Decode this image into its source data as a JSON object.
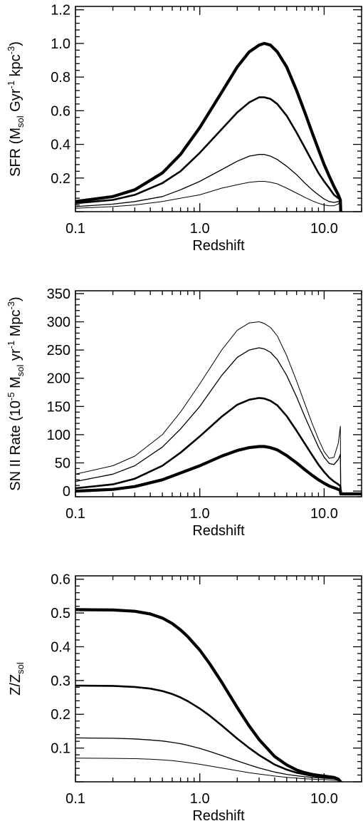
{
  "chart_data": [
    {
      "type": "line",
      "xscale": "log",
      "xlim": [
        0.1,
        20
      ],
      "ylim": [
        0,
        1.22
      ],
      "xticks": [
        {
          "v": 0.1,
          "label": "0.1"
        },
        {
          "v": 1.0,
          "label": "1.0"
        },
        {
          "v": 10.0,
          "label": "10.0"
        }
      ],
      "yticks": [
        {
          "v": 0.2,
          "label": "0.2"
        },
        {
          "v": 0.4,
          "label": "0.4"
        },
        {
          "v": 0.6,
          "label": "0.6"
        },
        {
          "v": 0.8,
          "label": "0.8"
        },
        {
          "v": 1.0,
          "label": "1.0"
        },
        {
          "v": 1.2,
          "label": "1.2"
        }
      ],
      "xlabel": "Redshift",
      "ylabel": {
        "pre": "SFR (M",
        "sub": "sol",
        "mid1": " Gyr",
        "sup1": "-1",
        "mid2": " kpc",
        "sup2": "-3",
        "post": ")"
      },
      "series": [
        {
          "stroke": 4.2,
          "x": [
            0.1,
            0.2,
            0.3,
            0.5,
            0.7,
            1.0,
            1.5,
            2.0,
            2.5,
            3.0,
            3.3,
            3.7,
            4.2,
            5.0,
            6.0,
            7.0,
            8.0,
            9.0,
            10.0,
            11.0,
            12.0,
            13.0,
            13.5,
            13.6
          ],
          "y": [
            0.06,
            0.09,
            0.13,
            0.23,
            0.34,
            0.5,
            0.71,
            0.86,
            0.95,
            0.99,
            1.0,
            0.99,
            0.95,
            0.86,
            0.72,
            0.59,
            0.47,
            0.37,
            0.28,
            0.21,
            0.15,
            0.1,
            0.07,
            0.0
          ]
        },
        {
          "stroke": 2.6,
          "x": [
            0.1,
            0.2,
            0.3,
            0.5,
            0.7,
            1.0,
            1.5,
            2.0,
            2.5,
            3.0,
            3.3,
            3.7,
            4.2,
            5.0,
            6.0,
            7.0,
            8.0,
            9.0,
            10.0,
            11.0,
            12.0,
            13.0,
            13.5,
            13.6
          ],
          "y": [
            0.05,
            0.07,
            0.1,
            0.17,
            0.24,
            0.35,
            0.49,
            0.59,
            0.65,
            0.68,
            0.68,
            0.67,
            0.64,
            0.57,
            0.47,
            0.38,
            0.3,
            0.23,
            0.18,
            0.14,
            0.1,
            0.08,
            0.07,
            0.0
          ]
        },
        {
          "stroke": 1.3,
          "x": [
            0.1,
            0.2,
            0.3,
            0.5,
            0.7,
            1.0,
            1.5,
            2.0,
            2.5,
            3.0,
            3.3,
            3.7,
            4.2,
            5.0,
            6.0,
            7.0,
            8.0,
            9.0,
            10.0,
            11.0,
            12.0,
            13.0,
            13.5,
            13.6
          ],
          "y": [
            0.03,
            0.045,
            0.06,
            0.09,
            0.13,
            0.18,
            0.25,
            0.3,
            0.33,
            0.34,
            0.34,
            0.33,
            0.31,
            0.27,
            0.22,
            0.17,
            0.13,
            0.1,
            0.075,
            0.06,
            0.055,
            0.06,
            0.07,
            0.0
          ]
        },
        {
          "stroke": 1.0,
          "x": [
            0.1,
            0.2,
            0.3,
            0.5,
            0.7,
            1.0,
            1.5,
            2.0,
            2.5,
            3.0,
            3.3,
            3.7,
            4.2,
            5.0,
            6.0,
            7.0,
            8.0,
            9.0,
            10.0,
            11.0,
            12.0,
            13.0,
            13.5,
            13.6
          ],
          "y": [
            0.02,
            0.03,
            0.04,
            0.06,
            0.08,
            0.1,
            0.14,
            0.16,
            0.175,
            0.18,
            0.18,
            0.175,
            0.165,
            0.14,
            0.11,
            0.085,
            0.065,
            0.05,
            0.04,
            0.035,
            0.035,
            0.045,
            0.07,
            0.0
          ]
        }
      ]
    },
    {
      "type": "line",
      "xscale": "log",
      "xlim": [
        0.1,
        20
      ],
      "ylim": [
        -10,
        355
      ],
      "xticks": [
        {
          "v": 0.1,
          "label": "0.1"
        },
        {
          "v": 1.0,
          "label": "1.0"
        },
        {
          "v": 10.0,
          "label": "10.0"
        }
      ],
      "yticks": [
        {
          "v": 0,
          "label": "0"
        },
        {
          "v": 50,
          "label": "50"
        },
        {
          "v": 100,
          "label": "100"
        },
        {
          "v": 150,
          "label": "150"
        },
        {
          "v": 200,
          "label": "200"
        },
        {
          "v": 250,
          "label": "250"
        },
        {
          "v": 300,
          "label": "300"
        },
        {
          "v": 350,
          "label": "350"
        }
      ],
      "xlabel": "Redshift",
      "ylabel": {
        "pre": "SN II Rate (10",
        "sup0": "-5",
        "mid0": " M",
        "sub": "sol",
        "mid1": " yr",
        "sup1": "-1",
        "mid2": " Mpc",
        "sup2": "-3",
        "post": ")"
      },
      "series": [
        {
          "stroke": 1.0,
          "x": [
            0.1,
            0.2,
            0.3,
            0.5,
            0.7,
            1.0,
            1.5,
            2.0,
            2.5,
            3.0,
            3.3,
            3.7,
            4.2,
            5.0,
            6.0,
            7.0,
            8.0,
            9.0,
            10.0,
            11.0,
            12.0,
            13.0,
            13.5,
            13.6
          ],
          "y": [
            30,
            45,
            62,
            100,
            140,
            190,
            250,
            285,
            298,
            300,
            297,
            290,
            275,
            240,
            195,
            155,
            120,
            92,
            70,
            58,
            60,
            85,
            115,
            0
          ]
        },
        {
          "stroke": 1.3,
          "x": [
            0.1,
            0.2,
            0.3,
            0.5,
            0.7,
            1.0,
            1.5,
            2.0,
            2.5,
            3.0,
            3.3,
            3.7,
            4.2,
            5.0,
            6.0,
            7.0,
            8.0,
            9.0,
            10.0,
            11.0,
            12.0,
            13.0,
            13.5,
            13.6
          ],
          "y": [
            17,
            30,
            45,
            78,
            110,
            150,
            205,
            237,
            250,
            254,
            252,
            246,
            233,
            205,
            167,
            132,
            103,
            78,
            60,
            49,
            47,
            56,
            65,
            0
          ]
        },
        {
          "stroke": 2.6,
          "x": [
            0.1,
            0.2,
            0.3,
            0.5,
            0.7,
            1.0,
            1.5,
            2.0,
            2.5,
            3.0,
            3.3,
            3.7,
            4.2,
            5.0,
            6.0,
            7.0,
            8.0,
            9.0,
            10.0,
            11.0,
            12.0,
            13.0,
            13.5,
            13.6
          ],
          "y": [
            5,
            12,
            22,
            45,
            68,
            97,
            132,
            153,
            162,
            165,
            164,
            160,
            152,
            133,
            107,
            84,
            64,
            47,
            34,
            24,
            17,
            12,
            9,
            0
          ]
        },
        {
          "stroke": 4.2,
          "x": [
            0.1,
            0.2,
            0.3,
            0.5,
            0.7,
            1.0,
            1.5,
            2.0,
            2.5,
            3.0,
            3.3,
            3.7,
            4.2,
            5.0,
            6.0,
            7.0,
            8.0,
            9.0,
            10.0,
            11.0,
            12.0,
            13.0,
            13.5,
            13.6,
            20.0
          ],
          "y": [
            0,
            3,
            8,
            20,
            32,
            45,
            62,
            72,
            77,
            79,
            79,
            77,
            73,
            63,
            50,
            38,
            28,
            20,
            14,
            9,
            6,
            3,
            1,
            -5,
            -5
          ]
        }
      ]
    },
    {
      "type": "line",
      "xscale": "log",
      "xlim": [
        0.1,
        20
      ],
      "ylim": [
        0,
        0.61
      ],
      "xticks": [
        {
          "v": 0.1,
          "label": "0.1"
        },
        {
          "v": 1.0,
          "label": "1.0"
        },
        {
          "v": 10.0,
          "label": "10.0"
        }
      ],
      "yticks": [
        {
          "v": 0.1,
          "label": "0.1"
        },
        {
          "v": 0.2,
          "label": "0.2"
        },
        {
          "v": 0.3,
          "label": "0.3"
        },
        {
          "v": 0.4,
          "label": "0.4"
        },
        {
          "v": 0.5,
          "label": "0.5"
        },
        {
          "v": 0.6,
          "label": "0.6"
        }
      ],
      "xlabel": "Redshift",
      "ylabel": {
        "pre": "Z/Z",
        "sub": "sol"
      },
      "series": [
        {
          "stroke": 4.2,
          "x": [
            0.1,
            0.2,
            0.3,
            0.4,
            0.5,
            0.6,
            0.7,
            0.8,
            1.0,
            1.2,
            1.5,
            2.0,
            2.5,
            3.0,
            4.0,
            5.0,
            6.0,
            7.0,
            8.0,
            9.0,
            10.0,
            11.0,
            12.0,
            13.0,
            13.6
          ],
          "y": [
            0.51,
            0.509,
            0.505,
            0.497,
            0.485,
            0.469,
            0.45,
            0.43,
            0.39,
            0.35,
            0.295,
            0.22,
            0.165,
            0.125,
            0.075,
            0.05,
            0.035,
            0.027,
            0.022,
            0.019,
            0.017,
            0.015,
            0.013,
            0.008,
            0.0
          ]
        },
        {
          "stroke": 2.6,
          "x": [
            0.1,
            0.2,
            0.3,
            0.4,
            0.5,
            0.6,
            0.7,
            0.8,
            1.0,
            1.2,
            1.5,
            2.0,
            2.5,
            3.0,
            4.0,
            5.0,
            6.0,
            7.0,
            8.0,
            9.0,
            10.0,
            11.0,
            12.0,
            13.0,
            13.6
          ],
          "y": [
            0.285,
            0.284,
            0.281,
            0.276,
            0.269,
            0.26,
            0.25,
            0.239,
            0.217,
            0.196,
            0.167,
            0.128,
            0.1,
            0.079,
            0.051,
            0.036,
            0.027,
            0.022,
            0.018,
            0.016,
            0.015,
            0.013,
            0.011,
            0.007,
            0.0
          ]
        },
        {
          "stroke": 1.3,
          "x": [
            0.1,
            0.2,
            0.3,
            0.4,
            0.5,
            0.6,
            0.7,
            0.8,
            1.0,
            1.2,
            1.5,
            2.0,
            2.5,
            3.0,
            4.0,
            5.0,
            6.0,
            7.0,
            8.0,
            9.0,
            10.0,
            11.0,
            12.0,
            13.0,
            13.6
          ],
          "y": [
            0.13,
            0.129,
            0.127,
            0.124,
            0.121,
            0.117,
            0.113,
            0.108,
            0.099,
            0.09,
            0.078,
            0.062,
            0.05,
            0.041,
            0.029,
            0.022,
            0.018,
            0.015,
            0.013,
            0.012,
            0.011,
            0.01,
            0.009,
            0.006,
            0.0
          ]
        },
        {
          "stroke": 1.0,
          "x": [
            0.1,
            0.2,
            0.3,
            0.4,
            0.5,
            0.6,
            0.7,
            0.8,
            1.0,
            1.2,
            1.5,
            2.0,
            2.5,
            3.0,
            4.0,
            5.0,
            6.0,
            7.0,
            8.0,
            9.0,
            10.0,
            11.0,
            12.0,
            13.0,
            13.6
          ],
          "y": [
            0.07,
            0.0695,
            0.0685,
            0.067,
            0.065,
            0.063,
            0.06,
            0.057,
            0.052,
            0.047,
            0.041,
            0.033,
            0.027,
            0.023,
            0.017,
            0.013,
            0.011,
            0.009,
            0.008,
            0.007,
            0.007,
            0.006,
            0.005,
            0.004,
            0.0
          ]
        }
      ]
    }
  ]
}
